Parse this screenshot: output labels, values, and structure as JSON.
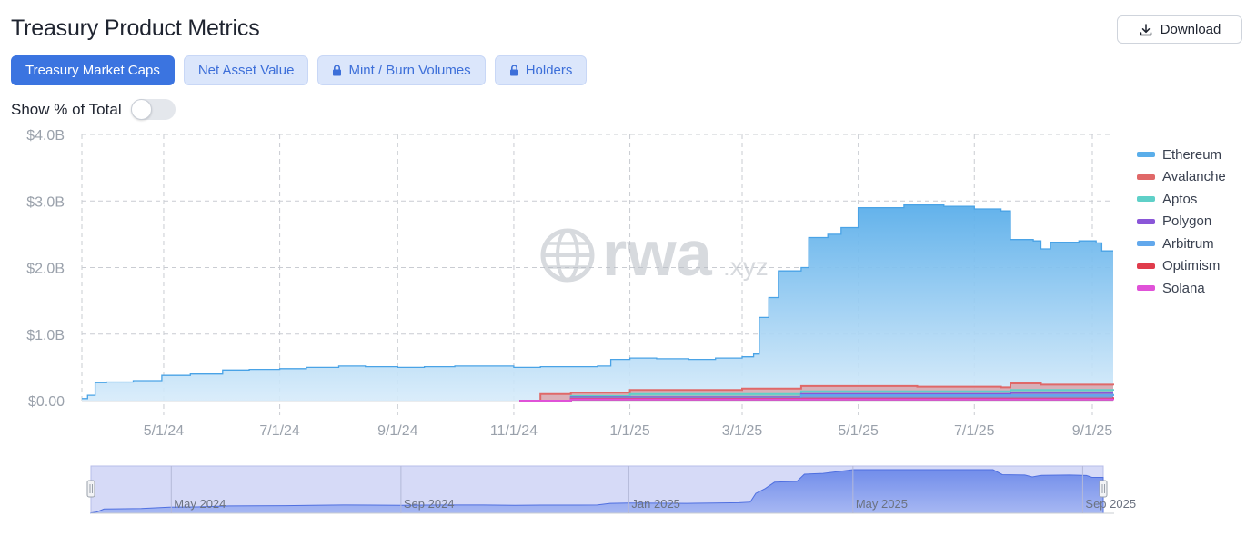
{
  "header": {
    "title": "Treasury Product Metrics",
    "download_label": "Download"
  },
  "tabs": [
    {
      "label": "Treasury Market Caps",
      "active": true,
      "locked": false
    },
    {
      "label": "Net Asset Value",
      "active": false,
      "locked": false
    },
    {
      "label": "Mint / Burn Volumes",
      "active": false,
      "locked": true
    },
    {
      "label": "Holders",
      "active": false,
      "locked": true
    }
  ],
  "toggle": {
    "label": "Show % of Total",
    "on": false
  },
  "watermark": {
    "text": "rwa",
    "suffix": ".xyz"
  },
  "colors": {
    "accent": "#3b74e0",
    "ethereum": "#5aaeea",
    "avalanche": "#e06868",
    "aptos": "#5fd0c8",
    "polygon": "#8a56d8",
    "arbitrum": "#62a8ec",
    "optimism": "#e03c4c",
    "solana": "#e052d8"
  },
  "chart_data": {
    "type": "area",
    "stacked": true,
    "y_tick_labels": [
      "$0.00",
      "$1.0B",
      "$2.0B",
      "$3.0B",
      "$4.0B"
    ],
    "ylim": [
      0,
      4.0
    ],
    "y_unit": "B USD",
    "x_tick_labels": [
      "5/1/24",
      "7/1/24",
      "9/1/24",
      "11/1/24",
      "1/1/25",
      "3/1/25",
      "5/1/25",
      "7/1/25",
      "9/1/25"
    ],
    "xlim": [
      "2024-03-19",
      "2025-09-12"
    ],
    "grid": true,
    "legend_position": "right",
    "series": [
      {
        "name": "Ethereum",
        "color_key": "ethereum",
        "points": [
          [
            "2024-03-19",
            0.03
          ],
          [
            "2024-03-22",
            0.08
          ],
          [
            "2024-03-26",
            0.27
          ],
          [
            "2024-04-01",
            0.28
          ],
          [
            "2024-04-15",
            0.3
          ],
          [
            "2024-04-30",
            0.38
          ],
          [
            "2024-05-15",
            0.4
          ],
          [
            "2024-06-01",
            0.46
          ],
          [
            "2024-06-15",
            0.47
          ],
          [
            "2024-07-01",
            0.48
          ],
          [
            "2024-07-15",
            0.5
          ],
          [
            "2024-08-01",
            0.52
          ],
          [
            "2024-08-15",
            0.51
          ],
          [
            "2024-09-01",
            0.5
          ],
          [
            "2024-09-15",
            0.51
          ],
          [
            "2024-10-01",
            0.52
          ],
          [
            "2024-10-15",
            0.52
          ],
          [
            "2024-11-01",
            0.5
          ],
          [
            "2024-11-15",
            0.51
          ],
          [
            "2024-12-01",
            0.51
          ],
          [
            "2024-12-15",
            0.52
          ],
          [
            "2024-12-22",
            0.62
          ],
          [
            "2025-01-01",
            0.64
          ],
          [
            "2025-01-15",
            0.63
          ],
          [
            "2025-02-01",
            0.62
          ],
          [
            "2025-02-15",
            0.64
          ],
          [
            "2025-03-01",
            0.66
          ],
          [
            "2025-03-07",
            0.7
          ],
          [
            "2025-03-10",
            1.25
          ],
          [
            "2025-03-15",
            1.55
          ],
          [
            "2025-03-20",
            1.95
          ],
          [
            "2025-04-01",
            2.0
          ],
          [
            "2025-04-05",
            2.45
          ],
          [
            "2025-04-15",
            2.5
          ],
          [
            "2025-04-22",
            2.6
          ],
          [
            "2025-05-01",
            2.9
          ],
          [
            "2025-05-15",
            2.9
          ],
          [
            "2025-05-25",
            2.94
          ],
          [
            "2025-06-15",
            2.92
          ],
          [
            "2025-07-01",
            2.88
          ],
          [
            "2025-07-15",
            2.85
          ],
          [
            "2025-07-20",
            2.42
          ],
          [
            "2025-08-01",
            2.4
          ],
          [
            "2025-08-05",
            2.28
          ],
          [
            "2025-08-10",
            2.38
          ],
          [
            "2025-08-25",
            2.4
          ],
          [
            "2025-09-03",
            2.37
          ],
          [
            "2025-09-06",
            2.25
          ],
          [
            "2025-09-12",
            2.25
          ]
        ]
      },
      {
        "name": "Avalanche",
        "color_key": "avalanche",
        "points": [
          [
            "2024-11-04",
            0.0
          ],
          [
            "2024-11-15",
            0.1
          ],
          [
            "2024-12-01",
            0.12
          ],
          [
            "2025-01-01",
            0.16
          ],
          [
            "2025-03-01",
            0.18
          ],
          [
            "2025-04-01",
            0.22
          ],
          [
            "2025-06-01",
            0.21
          ],
          [
            "2025-07-15",
            0.2
          ],
          [
            "2025-07-20",
            0.26
          ],
          [
            "2025-08-05",
            0.24
          ],
          [
            "2025-09-12",
            0.23
          ]
        ]
      },
      {
        "name": "Aptos",
        "color_key": "aptos",
        "points": [
          [
            "2024-11-04",
            0.0
          ],
          [
            "2024-12-01",
            0.07
          ],
          [
            "2025-01-01",
            0.1
          ],
          [
            "2025-04-01",
            0.14
          ],
          [
            "2025-07-20",
            0.16
          ],
          [
            "2025-09-12",
            0.15
          ]
        ]
      },
      {
        "name": "Polygon",
        "color_key": "polygon",
        "points": [
          [
            "2024-11-04",
            0.0
          ],
          [
            "2024-12-01",
            0.05
          ],
          [
            "2025-04-01",
            0.1
          ],
          [
            "2025-07-20",
            0.12
          ],
          [
            "2025-09-12",
            0.12
          ]
        ]
      },
      {
        "name": "Arbitrum",
        "color_key": "arbitrum",
        "points": [
          [
            "2024-11-04",
            0.0
          ],
          [
            "2024-12-01",
            0.04
          ],
          [
            "2025-04-01",
            0.08
          ],
          [
            "2025-09-12",
            0.1
          ]
        ]
      },
      {
        "name": "Optimism",
        "color_key": "optimism",
        "points": [
          [
            "2024-11-04",
            0.0
          ],
          [
            "2024-12-01",
            0.03
          ],
          [
            "2025-09-12",
            0.05
          ]
        ]
      },
      {
        "name": "Solana",
        "color_key": "solana",
        "points": [
          [
            "2024-11-04",
            0.0
          ],
          [
            "2024-12-01",
            0.02
          ],
          [
            "2025-09-12",
            0.03
          ]
        ]
      }
    ]
  },
  "navigator": {
    "labels": [
      {
        "text": "May 2024",
        "date": "2024-05-01"
      },
      {
        "text": "Sep 2024",
        "date": "2024-09-01"
      },
      {
        "text": "Jan 2025",
        "date": "2025-01-01"
      },
      {
        "text": "May 2025",
        "date": "2025-05-01"
      },
      {
        "text": "Sep 2025",
        "date": "2025-09-01"
      }
    ]
  }
}
